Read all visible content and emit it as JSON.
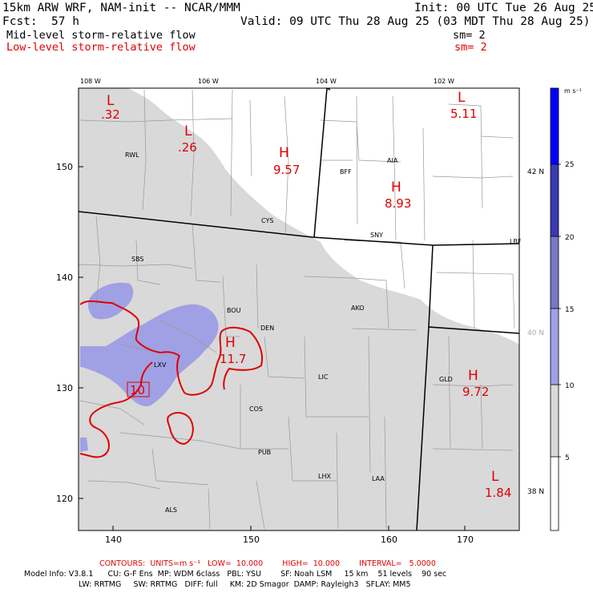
{
  "header": {
    "model": "15km ARW WRF, NAM-init -- NCAR/MMM",
    "init": "Init: 00 UTC Tue 26 Aug 25",
    "fcst_label": "Fcst:",
    "fcst_value": "57 h",
    "valid": "Valid: 09 UTC Thu 28 Aug 25 (03 MDT Thu 28 Aug 25)",
    "field1": "Mid-level storm-relative flow",
    "field1_sm": "sm= 2",
    "field2": "Low-level storm-relative flow",
    "field2_sm": "sm= 2"
  },
  "colors": {
    "shade_gray": "#d9d9d9",
    "shade_lavender": "#a0a0e4",
    "contour_red": "#e00000"
  },
  "top_ticks": [
    "108 W",
    "106 W",
    "104 W",
    "102 W"
  ],
  "right_ticks": [
    "42 N",
    "40 N",
    "38 N"
  ],
  "left_ticks": [
    "150",
    "140",
    "130",
    "120"
  ],
  "bottom_ticks": [
    "140",
    "150",
    "160",
    "170"
  ],
  "colorbar": {
    "unit": "m s⁻¹",
    "labels": [
      "25",
      "20",
      "15",
      "10",
      "5"
    ]
  },
  "stations": [
    "RWL",
    "CYS",
    "BFF",
    "AIA",
    "SNY",
    "LBF",
    "SBS",
    "BOU",
    "DEN",
    "AKO",
    "LXV",
    "LIC",
    "GLD",
    "COS",
    "PUB",
    "LHX",
    "LAA",
    "ALS"
  ],
  "highs_lows": [
    {
      "letter": "L",
      "value": ".32"
    },
    {
      "letter": "L",
      "value": ".26"
    },
    {
      "letter": "H",
      "value": "9.57"
    },
    {
      "letter": "L",
      "value": "5.11"
    },
    {
      "letter": "H",
      "value": "8.93"
    },
    {
      "letter": "H",
      "value": "11.7"
    },
    {
      "letter": "H",
      "value": "9.72"
    },
    {
      "letter": "L",
      "value": "1.84"
    }
  ],
  "contour_label": "10",
  "footer": {
    "contours": "CONTOURS:  UNITS=m s⁻¹   LOW=  10.000        HIGH=  10.000        INTERVAL=   5.0000",
    "model_info_1": "Model Info: V3.8.1      CU: G-F Ens  MP: WDM 6class   PBL: YSU        SF: Noah LSM     15 km    51 levels    90 sec",
    "model_info_2": "LW: RRTMG     SW: RRTMG   DIFF: full     KM: 2D Smagor  DAMP: Rayleigh3   SFLAY: MM5"
  }
}
